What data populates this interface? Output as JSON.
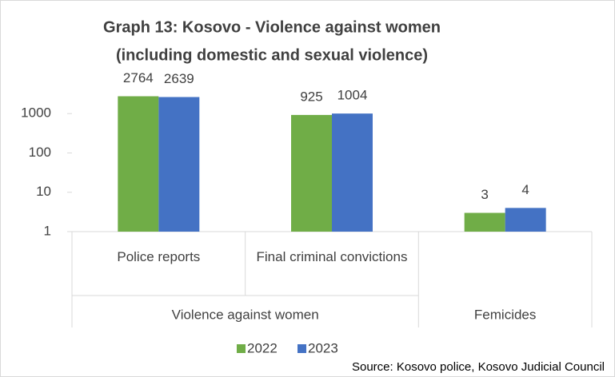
{
  "chart_data": {
    "type": "bar",
    "title": [
      "Graph 13: Kosovo - Violence against women",
      "(including domestic and sexual violence)"
    ],
    "categories": [
      "Police reports",
      "Final criminal convictions",
      null
    ],
    "category_groups": [
      "Violence against women",
      "Violence against women",
      "Femicides"
    ],
    "series": [
      {
        "name": "2022",
        "color": "#70ad47",
        "values": [
          2764,
          925,
          3
        ]
      },
      {
        "name": "2023",
        "color": "#4472c4",
        "values": [
          2639,
          1004,
          4
        ]
      }
    ],
    "log_scale": true,
    "ylim": [
      1,
      10000
    ],
    "yticks": [
      1,
      10,
      100,
      1000
    ],
    "grid": false,
    "legend": "bottom",
    "source": "Source: Kosovo police, Kosovo Judicial Council"
  }
}
